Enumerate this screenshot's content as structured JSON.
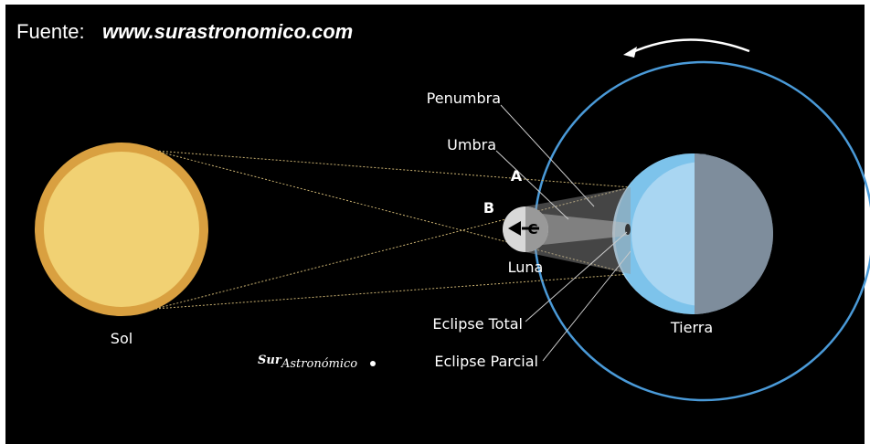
{
  "source": {
    "label": "Fuente:",
    "url": "www.surastronomico.com"
  },
  "bodies": {
    "sun": "Sol",
    "moon": "Luna",
    "earth": "Tierra"
  },
  "labels": {
    "penumbra": "Penumbra",
    "umbra": "Umbra",
    "total": "Eclipse Total",
    "partial": "Eclipse Parcial"
  },
  "markers": {
    "a": "A",
    "b": "B",
    "c": "C"
  },
  "logo": {
    "prefix": "Sur",
    "main": "Astronómico"
  }
}
